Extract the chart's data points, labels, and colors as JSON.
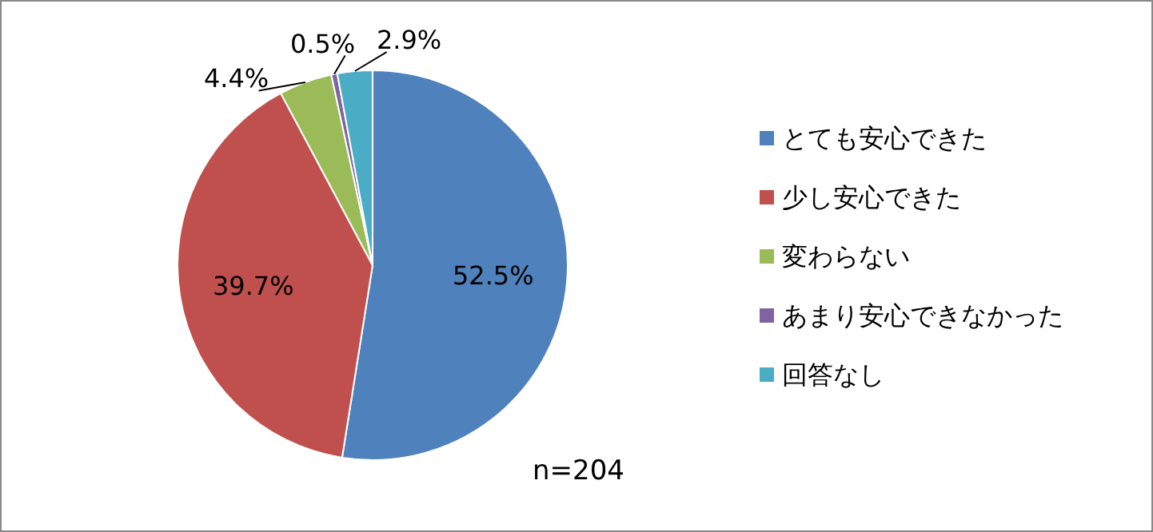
{
  "chart_data": {
    "type": "pie",
    "categories": [
      "とても安心できた",
      "少し安心できた",
      "変わらない",
      "あまり安心できなかった",
      "回答なし"
    ],
    "values": [
      52.5,
      39.7,
      4.4,
      0.5,
      2.9
    ],
    "colors": [
      "#4f81bd",
      "#c0504d",
      "#9bbb59",
      "#8064a2",
      "#4bacc6"
    ],
    "value_labels": [
      "52.5%",
      "39.7%",
      "4.4%",
      "0.5%",
      "2.9%"
    ],
    "legend": "right",
    "annotations": [
      "n=204"
    ]
  }
}
